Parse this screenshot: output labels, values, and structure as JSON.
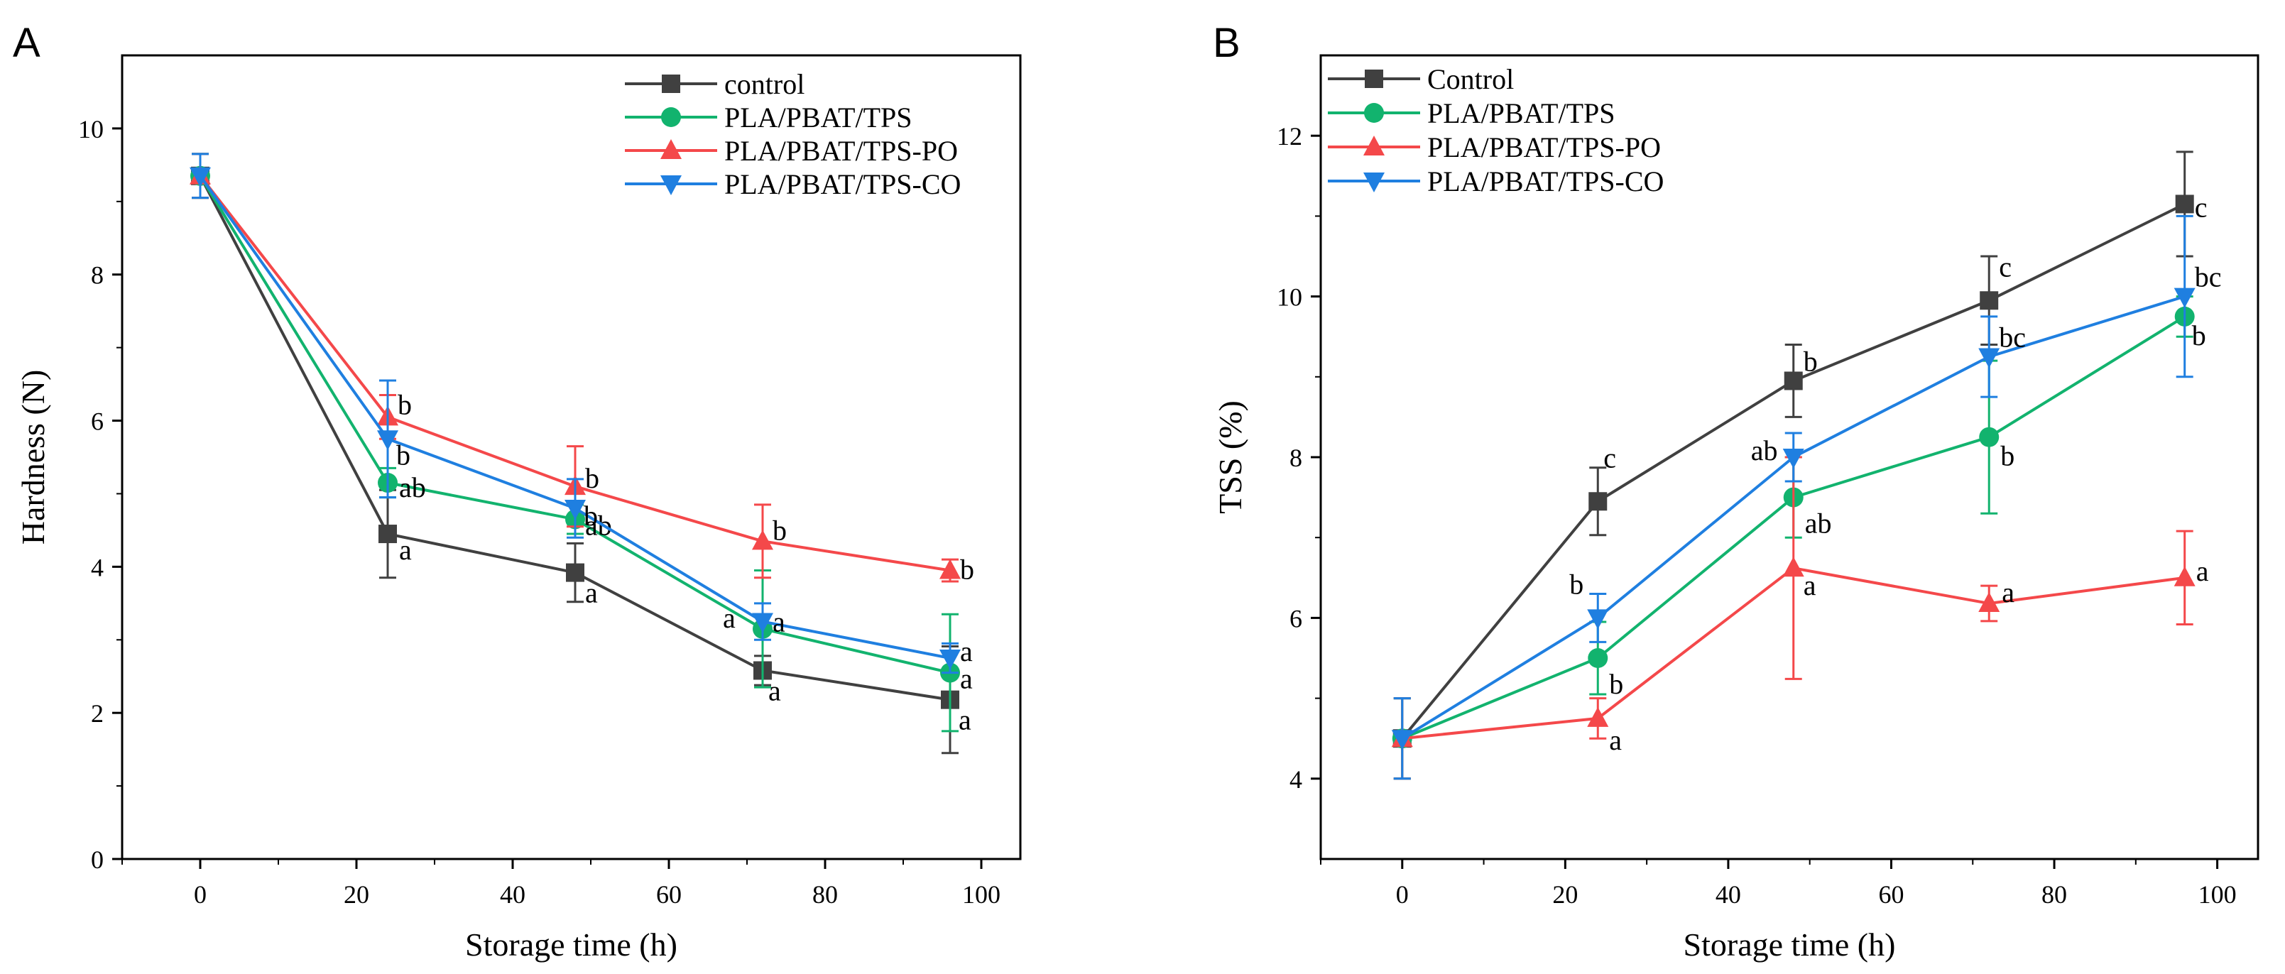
{
  "chart_data": [
    {
      "type": "line",
      "panel": "A",
      "title": "",
      "xlabel": "Storage time (h)",
      "ylabel": "Hardness (N)",
      "xlim": [
        -10,
        105
      ],
      "ylim": [
        0,
        11
      ],
      "xticks": [
        0,
        20,
        40,
        60,
        80,
        100
      ],
      "yticks": [
        0,
        2,
        4,
        6,
        8,
        10
      ],
      "x": [
        0,
        24,
        48,
        72,
        96
      ],
      "legend_position": "top-right",
      "series": [
        {
          "name": "control",
          "color": "#404040",
          "marker": "square",
          "values": [
            9.35,
            4.45,
            3.92,
            2.58,
            2.18
          ],
          "errors": [
            0.3,
            0.6,
            0.4,
            0.2,
            0.73
          ],
          "labels": [
            "",
            "a",
            "a",
            "a",
            "a"
          ]
        },
        {
          "name": "PLA/PBAT/TPS",
          "color": "#12b36e",
          "marker": "circle",
          "values": [
            9.35,
            5.15,
            4.65,
            3.15,
            2.55
          ],
          "errors": [
            0.3,
            0.2,
            0.2,
            0.8,
            0.8
          ],
          "labels": [
            "",
            "ab",
            "ab",
            "a",
            "a"
          ]
        },
        {
          "name": "PLA/PBAT/TPS-PO",
          "color": "#f4484a",
          "marker": "triangle-up",
          "values": [
            9.35,
            6.05,
            5.1,
            4.35,
            3.95
          ],
          "errors": [
            0.3,
            0.3,
            0.55,
            0.5,
            0.15
          ],
          "labels": [
            "",
            "b",
            "b",
            "b",
            "b"
          ]
        },
        {
          "name": "PLA/PBAT/TPS-CO",
          "color": "#1f7fe0",
          "marker": "triangle-down",
          "values": [
            9.35,
            5.75,
            4.8,
            3.25,
            2.75
          ],
          "errors": [
            0.3,
            0.8,
            0.4,
            0.25,
            0.2
          ],
          "labels": [
            "",
            "b",
            "b",
            "a",
            "a"
          ]
        }
      ]
    },
    {
      "type": "line",
      "panel": "B",
      "title": "",
      "xlabel": "Storage time (h)",
      "ylabel": "TSS (%)",
      "xlim": [
        -10,
        105
      ],
      "ylim": [
        3,
        13
      ],
      "xticks": [
        0,
        20,
        40,
        60,
        80,
        100
      ],
      "yticks": [
        4,
        6,
        8,
        10,
        12
      ],
      "x": [
        0,
        24,
        48,
        72,
        96
      ],
      "legend_position": "top-left",
      "series": [
        {
          "name": "Control",
          "color": "#404040",
          "marker": "square",
          "values": [
            4.5,
            7.45,
            8.95,
            9.95,
            11.15
          ],
          "errors": [
            0.5,
            0.42,
            0.45,
            0.55,
            0.65
          ],
          "labels": [
            "",
            "c",
            "b",
            "c",
            "c"
          ]
        },
        {
          "name": "PLA/PBAT/TPS",
          "color": "#12b36e",
          "marker": "circle",
          "values": [
            4.5,
            5.5,
            7.5,
            8.25,
            9.75
          ],
          "errors": [
            0.5,
            0.45,
            0.5,
            0.95,
            0.25
          ],
          "labels": [
            "",
            "b",
            "ab",
            "b",
            "b"
          ]
        },
        {
          "name": "PLA/PBAT/TPS-PO",
          "color": "#f4484a",
          "marker": "triangle-up",
          "values": [
            4.5,
            4.75,
            6.62,
            6.18,
            6.5
          ],
          "errors": [
            0.5,
            0.25,
            1.38,
            0.22,
            0.58
          ],
          "labels": [
            "",
            "a",
            "a",
            "a",
            "a"
          ]
        },
        {
          "name": "PLA/PBAT/TPS-CO",
          "color": "#1f7fe0",
          "marker": "triangle-down",
          "values": [
            4.5,
            6.0,
            8.0,
            9.25,
            10.0
          ],
          "errors": [
            0.5,
            0.3,
            0.3,
            0.5,
            1.0
          ],
          "labels": [
            "",
            "b",
            "ab",
            "bc",
            "bc"
          ]
        }
      ]
    }
  ]
}
